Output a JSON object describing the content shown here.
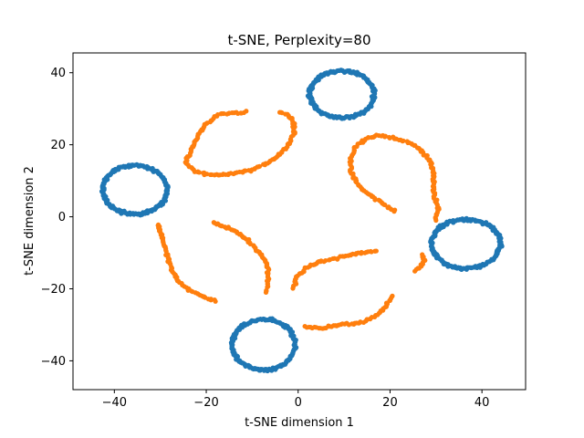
{
  "chart_data": {
    "type": "scatter",
    "title": "t-SNE, Perplexity=80",
    "xlabel": "t-SNE dimension 1",
    "ylabel": "t-SNE dimension 2",
    "xlim": [
      -49,
      49.5
    ],
    "ylim": [
      -48,
      45.5
    ],
    "xticks": [
      -40,
      -20,
      0,
      20,
      40
    ],
    "yticks": [
      -40,
      -20,
      0,
      20,
      40
    ],
    "grid": false,
    "legend": false,
    "series": [
      {
        "color": "#1f77b4",
        "shape": "rings",
        "rings": [
          {
            "cx": 9.5,
            "cy": 34,
            "rx": 7,
            "ry": 6.5
          },
          {
            "cx": -35.5,
            "cy": 7.5,
            "rx": 7,
            "ry": 6.8
          },
          {
            "cx": 36.5,
            "cy": -7.5,
            "rx": 7.5,
            "ry": 6.8
          },
          {
            "cx": -7.5,
            "cy": -35.5,
            "rx": 6.8,
            "ry": 7
          }
        ]
      },
      {
        "color": "#ff7f0e",
        "shape": "arcs",
        "arcs": [
          [
            [
              -11.5,
              29
            ],
            [
              -17,
              28.5
            ],
            [
              -20,
              26
            ],
            [
              -22,
              22
            ],
            [
              -23.5,
              18
            ],
            [
              -24.5,
              15
            ],
            [
              -22,
              12.5
            ],
            [
              -19,
              11.5
            ],
            [
              -14,
              12
            ],
            [
              -10,
              13
            ],
            [
              -6,
              15.5
            ],
            [
              -2.5,
              19
            ],
            [
              -1,
              23
            ],
            [
              -1,
              26.5
            ],
            [
              -2.5,
              28.5
            ],
            [
              -4,
              29
            ]
          ],
          [
            [
              21,
              1.5
            ],
            [
              18,
              4
            ],
            [
              15,
              6.5
            ],
            [
              13,
              9
            ],
            [
              11.5,
              12.5
            ],
            [
              11.5,
              16
            ],
            [
              12.5,
              19.5
            ],
            [
              15,
              22
            ],
            [
              18,
              22.5
            ],
            [
              22,
              21.5
            ],
            [
              26,
              19.5
            ],
            [
              28.5,
              16
            ],
            [
              29.5,
              12
            ],
            [
              29.5,
              7
            ],
            [
              30.5,
              2
            ],
            [
              30,
              -1
            ]
          ],
          [
            [
              -30.5,
              -2
            ],
            [
              -29.5,
              -6
            ],
            [
              -28.5,
              -11
            ],
            [
              -27.5,
              -15
            ],
            [
              -26,
              -18
            ],
            [
              -23.5,
              -20.5
            ],
            [
              -21,
              -22
            ],
            [
              -18,
              -23.5
            ]
          ],
          [
            [
              -18.5,
              -1.5
            ],
            [
              -14.5,
              -3.5
            ],
            [
              -11,
              -6.5
            ],
            [
              -8,
              -10.5
            ],
            [
              -6.5,
              -14
            ],
            [
              -6.5,
              -18
            ],
            [
              -7,
              -21
            ]
          ],
          [
            [
              -1,
              -20
            ],
            [
              -0.5,
              -17
            ],
            [
              1.5,
              -14.5
            ],
            [
              5,
              -12.5
            ],
            [
              9.5,
              -11
            ],
            [
              14,
              -10
            ],
            [
              17,
              -9.5
            ]
          ],
          [
            [
              1.5,
              -30.5
            ],
            [
              5,
              -31
            ],
            [
              9,
              -30
            ],
            [
              13.5,
              -29.5
            ],
            [
              17,
              -27.5
            ],
            [
              19,
              -25
            ],
            [
              20.5,
              -22
            ]
          ],
          [
            [
              25.5,
              -15
            ],
            [
              27.5,
              -12.5
            ],
            [
              27,
              -10.5
            ]
          ]
        ]
      }
    ]
  }
}
